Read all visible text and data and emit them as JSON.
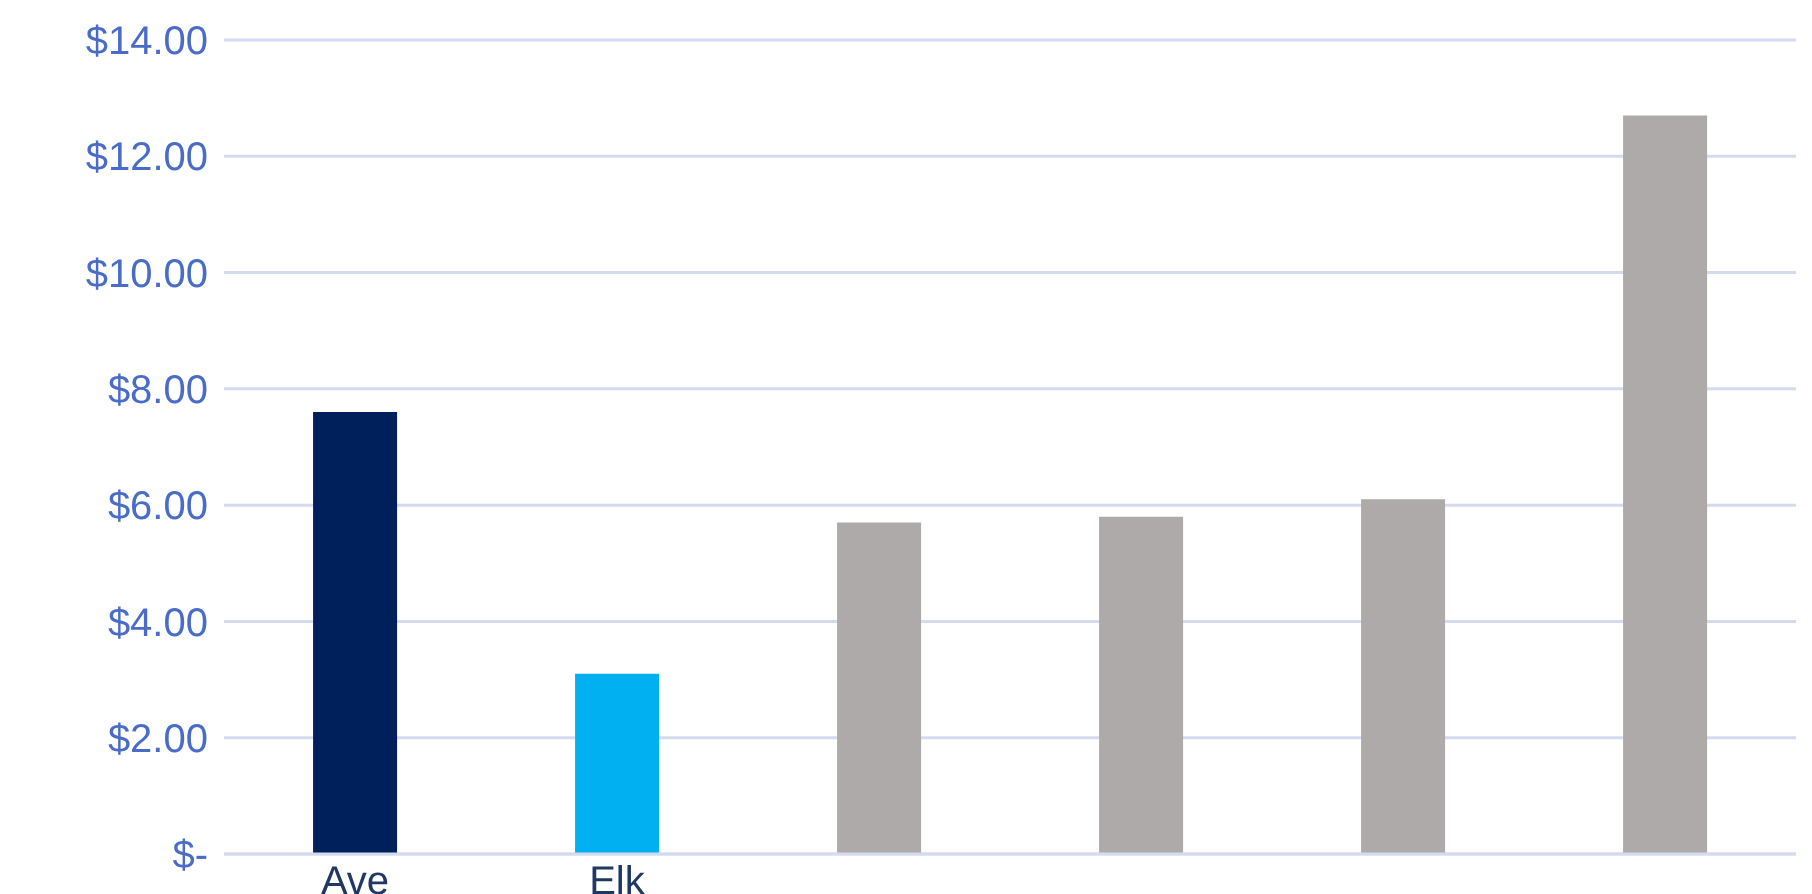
{
  "chart_data": {
    "type": "bar",
    "categories": [
      "Ave",
      "Elk",
      null,
      null,
      null,
      null
    ],
    "values": [
      7.6,
      3.1,
      5.7,
      5.8,
      6.1,
      12.7
    ],
    "colors": [
      "#00205b",
      "#00b0f0",
      "#aeaaaa",
      "#aeaaaa",
      "#aeaaaa",
      "#aeaaaa"
    ],
    "ylim": [
      0,
      14
    ],
    "yticks": [
      {
        "value": 0,
        "label": "$-"
      },
      {
        "value": 2,
        "label": "$2.00"
      },
      {
        "value": 4,
        "label": "$4.00"
      },
      {
        "value": 6,
        "label": "$6.00"
      },
      {
        "value": 8,
        "label": "$8.00"
      },
      {
        "value": 10,
        "label": "$10.00"
      },
      {
        "value": 12,
        "label": "$12.00"
      },
      {
        "value": 14,
        "label": "$14.00"
      }
    ],
    "grid": "y",
    "legend": false
  }
}
